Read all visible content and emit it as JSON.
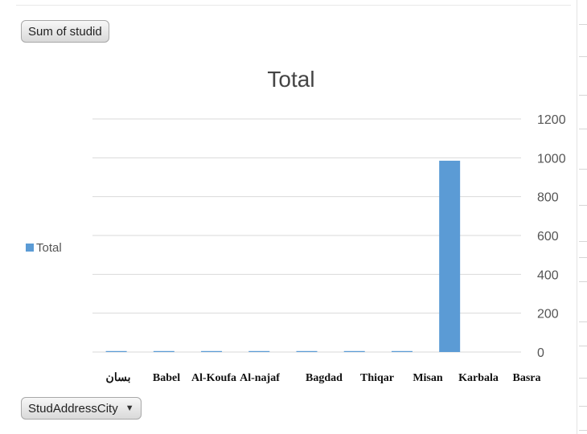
{
  "field_buttons": {
    "values_field": "Sum of studid",
    "axis_field": "StudAddressCity",
    "axis_field_caret": "▼"
  },
  "chart_data": {
    "type": "bar",
    "title": "Total",
    "xlabel": "",
    "ylabel": "",
    "categories": [
      "بسان",
      "Babel",
      "Al-Koufa",
      "Al-najaf",
      "Bagdad",
      "Thiqar",
      "Misan",
      "Karbala",
      "Basra"
    ],
    "series": [
      {
        "name": "Total",
        "color": "#5b9bd5",
        "values": [
          5,
          5,
          5,
          5,
          5,
          5,
          5,
          985,
          null
        ]
      }
    ],
    "ylim": [
      0,
      1200
    ],
    "yticks": [
      0,
      200,
      400,
      600,
      800,
      1000,
      1200
    ],
    "y_axis_side": "right",
    "grid": true,
    "legend": "left"
  }
}
